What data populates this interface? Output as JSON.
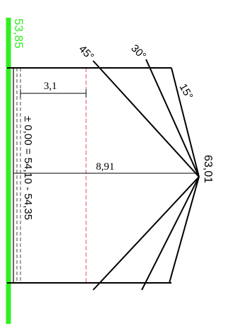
{
  "labels": {
    "green_elevation": "53,85",
    "angle_45": "45°",
    "angle_30": "30°",
    "angle_15": "15°",
    "dim_short": "3,1",
    "dim_long": "8,91",
    "apex_elevation": "63,01",
    "zero_level": "± 0,00 = 54,10 - 54,35"
  },
  "colors": {
    "green_band": "#33ee22",
    "red_dashed": "#e05050",
    "lines": "#000000",
    "dashed_dark": "#444444"
  }
}
